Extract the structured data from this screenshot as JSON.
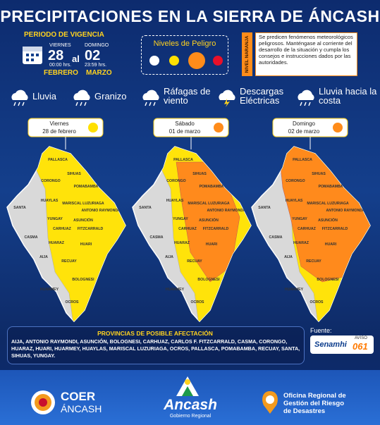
{
  "header": {
    "title": "Precipitaciones en la sierra de Áncash"
  },
  "validity": {
    "label": "PERIODO DE VIGENCIA",
    "connector": "al",
    "start": {
      "weekday": "VIERNES",
      "day": "28",
      "time": "00:00 hrs.",
      "month": "FEBRERO"
    },
    "end": {
      "weekday": "DOMINGO",
      "day": "02",
      "time": "23:59 hrs.",
      "month": "MARZO"
    }
  },
  "danger": {
    "title": "Niveles de Peligro",
    "level": "NIVEL NARANJA",
    "text": "Se predicen fenómenos meteorológicos peligrosos. Manténgase al corriente del desarrollo de la situación y cumpla los consejos e instrucciones dados por las autoridades."
  },
  "phenomena": [
    "Lluvia",
    "Granizo",
    "Ráfagas de viento",
    "Descargas Eléctricas",
    "Lluvia hacia la costa"
  ],
  "maps": [
    {
      "day": "Viernes",
      "date": "28 de febrero"
    },
    {
      "day": "Sábado",
      "date": "01 de marzo"
    },
    {
      "day": "Domingo",
      "date": "02 de marzo"
    }
  ],
  "map_labels": [
    "PALLASCA",
    "SIHUAS",
    "CORONGO",
    "POMABAMBA",
    "SANTA",
    "HUAYLAS",
    "MARISCAL LUZURIAGA",
    "YUNGAY",
    "CARHUAZ",
    "ASUNCIÓN",
    "FITZCARRALD",
    "ANTONIO RAYMONDI",
    "CASMA",
    "HUARAZ",
    "HUARI",
    "AIJA",
    "RECUAY",
    "HUARMEY",
    "BOLOGNESI",
    "OCROS"
  ],
  "provinces": {
    "title": "PROVINCIAS DE POSIBLE AFECTACIÓN",
    "list": "AIJA, ANTONIO RAYMONDI, ASUNCIÓN, BOLOGNESI, CARHUAZ, CARLOS F. FITZCARRALD, CASMA, CORONGO, HUARAZ, HUARI, HUARMEY, HUAYLAS, MARISCAL LUZURIAGA, OCROS, PALLASCA, POMABAMBA, RECUAY, SANTA, SIHUAS, YUNGAY."
  },
  "source": {
    "label": "Fuente:",
    "name": "Senamhi",
    "notice_label": "AVISO",
    "notice": "061"
  },
  "footer": {
    "coer_1": "COER",
    "coer_2": "ÁNCASH",
    "region": "Ancash",
    "region_sub": "Gobierno Regional",
    "office_1": "Oficina Regional de",
    "office_2": "Gestión del Riesgo",
    "office_3": "de Desastres"
  }
}
